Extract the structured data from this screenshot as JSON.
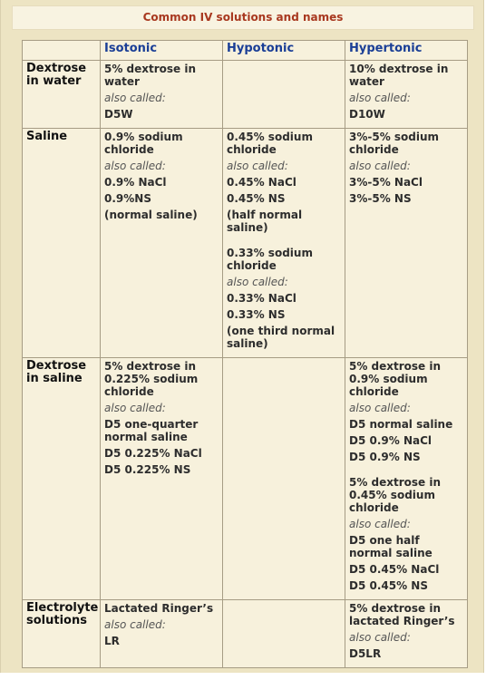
{
  "title": "Common IV solutions and names",
  "columns": [
    "",
    "Isotonic",
    "Hypotonic",
    "Hypertonic"
  ],
  "rows": [
    {
      "label": "Dextrose in water",
      "isotonic": {
        "blocks": [
          {
            "name": "5% dextrose in water",
            "also": "also called:",
            "aliases": [
              "D5W"
            ]
          }
        ]
      },
      "hypotonic": {
        "blocks": []
      },
      "hypertonic": {
        "blocks": [
          {
            "name": "10% dextrose in water",
            "also": "also called:",
            "aliases": [
              "D10W"
            ]
          }
        ]
      }
    },
    {
      "label": "Saline",
      "isotonic": {
        "blocks": [
          {
            "name": "0.9% sodium chloride",
            "also": "also called:",
            "aliases": [
              "0.9% NaCl",
              "0.9%NS",
              "(normal saline)"
            ]
          }
        ]
      },
      "hypotonic": {
        "blocks": [
          {
            "name": "0.45% sodium chloride",
            "also": "also called:",
            "aliases": [
              "0.45% NaCl",
              "0.45% NS",
              "(half normal saline)"
            ]
          },
          {
            "name": "0.33% sodium chloride",
            "also": "also called:",
            "aliases": [
              "0.33% NaCl",
              "0.33% NS",
              "(one third normal saline)"
            ]
          }
        ]
      },
      "hypertonic": {
        "blocks": [
          {
            "name": "3%-5% sodium chloride",
            "also": "also called:",
            "aliases": [
              "3%-5% NaCl",
              "3%-5% NS"
            ]
          }
        ]
      }
    },
    {
      "label": "Dextrose in saline",
      "isotonic": {
        "blocks": [
          {
            "name": "5% dextrose in 0.225% sodium chloride",
            "also": "also called:",
            "aliases": [
              "D5 one-quarter normal saline",
              "D5 0.225% NaCl",
              "D5 0.225% NS"
            ]
          }
        ]
      },
      "hypotonic": {
        "blocks": []
      },
      "hypertonic": {
        "blocks": [
          {
            "name": "5% dextrose in 0.9% sodium chloride",
            "also": "also called:",
            "aliases": [
              "D5 normal saline",
              "D5 0.9% NaCl",
              "D5 0.9% NS"
            ]
          },
          {
            "name": "5% dextrose in 0.45% sodium chloride",
            "also": "also called:",
            "aliases": [
              "D5 one half normal saline",
              "D5 0.45% NaCl",
              "D5 0.45% NS"
            ]
          }
        ]
      }
    },
    {
      "label": "Electrolyte solutions",
      "isotonic": {
        "blocks": [
          {
            "name": "Lactated Ringer’s",
            "also": "also called:",
            "aliases": [
              "LR"
            ]
          }
        ]
      },
      "hypotonic": {
        "blocks": []
      },
      "hypertonic": {
        "blocks": [
          {
            "name": "5% dextrose in lactated Ringer’s",
            "also": "also called:",
            "aliases": [
              "D5LR"
            ]
          }
        ]
      }
    }
  ]
}
